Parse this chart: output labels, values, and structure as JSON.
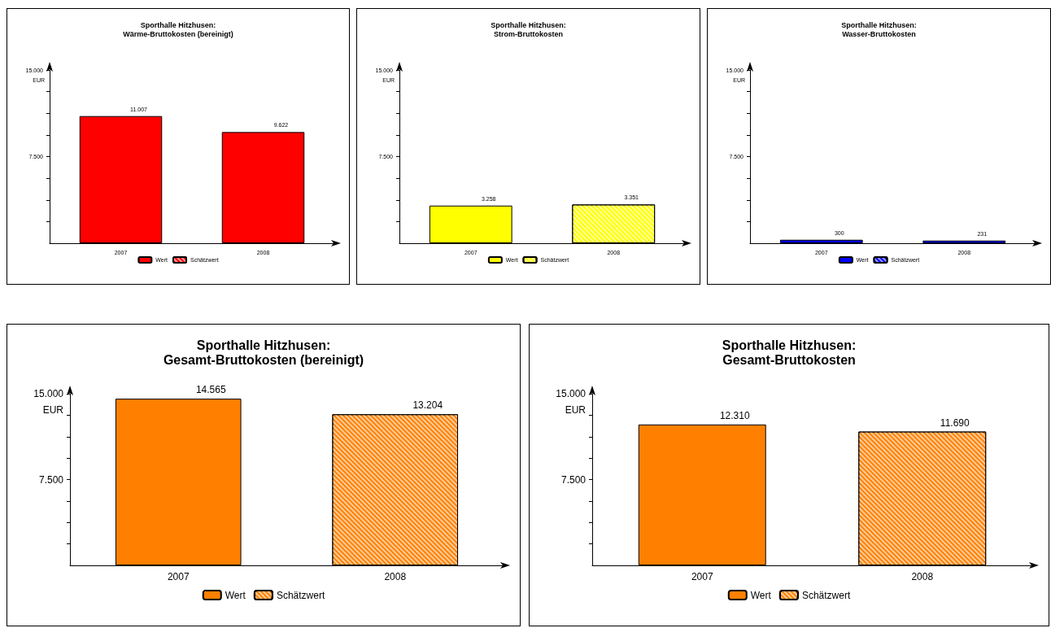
{
  "chart_data": [
    {
      "type": "bar",
      "title": "Sporthalle Hitzhusen:",
      "subtitle": "Wärme-Bruttokosten (bereinigt)",
      "ylabel": "EUR",
      "categories": [
        "2007",
        "2008"
      ],
      "series": [
        {
          "name": "Wert",
          "color": "#ff0000",
          "values": [
            11007,
            9622
          ],
          "value_labels": [
            "11.007",
            "9.622"
          ]
        },
        {
          "name": "Schätzwert",
          "color": "#ff0000",
          "values": [
            null,
            null
          ],
          "value_labels": [
            null,
            null
          ]
        }
      ],
      "ylim": [
        0,
        15000
      ],
      "yticks": [
        {
          "value": 1875,
          "label": null
        },
        {
          "value": 3750,
          "label": null
        },
        {
          "value": 5625,
          "label": null
        },
        {
          "value": 7500,
          "label": "7.500"
        },
        {
          "value": 9375,
          "label": null
        },
        {
          "value": 11250,
          "label": null
        },
        {
          "value": 13125,
          "label": null
        },
        {
          "value": 15000,
          "label": "15.000"
        }
      ],
      "legend": "bottom",
      "grid": false
    },
    {
      "type": "bar",
      "title": "Sporthalle Hitzhusen:",
      "subtitle": "Strom-Bruttokosten",
      "ylabel": "EUR",
      "categories": [
        "2007",
        "2008"
      ],
      "series": [
        {
          "name": "Wert",
          "color": "#ffff00",
          "values": [
            3258,
            null
          ],
          "value_labels": [
            "3.258",
            null
          ]
        },
        {
          "name": "Schätzwert",
          "color": "#ffff00",
          "values": [
            null,
            3351
          ],
          "value_labels": [
            null,
            "3.351"
          ]
        }
      ],
      "ylim": [
        0,
        15000
      ],
      "yticks": [
        {
          "value": 1875,
          "label": null
        },
        {
          "value": 3750,
          "label": null
        },
        {
          "value": 5625,
          "label": null
        },
        {
          "value": 7500,
          "label": "7.500"
        },
        {
          "value": 9375,
          "label": null
        },
        {
          "value": 11250,
          "label": null
        },
        {
          "value": 13125,
          "label": null
        },
        {
          "value": 15000,
          "label": "15.000"
        }
      ],
      "legend": "bottom",
      "grid": false
    },
    {
      "type": "bar",
      "title": "Sporthalle Hitzhusen:",
      "subtitle": "Wasser-Bruttokosten",
      "ylabel": "EUR",
      "categories": [
        "2007",
        "2008"
      ],
      "series": [
        {
          "name": "Wert",
          "color": "#0000ff",
          "values": [
            300,
            231
          ],
          "value_labels": [
            "300",
            "231"
          ]
        },
        {
          "name": "Schätzwert",
          "color": "#0000ff",
          "values": [
            null,
            null
          ],
          "value_labels": [
            null,
            null
          ]
        }
      ],
      "ylim": [
        0,
        15000
      ],
      "yticks": [
        {
          "value": 1875,
          "label": null
        },
        {
          "value": 3750,
          "label": null
        },
        {
          "value": 5625,
          "label": null
        },
        {
          "value": 7500,
          "label": "7.500"
        },
        {
          "value": 9375,
          "label": null
        },
        {
          "value": 11250,
          "label": null
        },
        {
          "value": 13125,
          "label": null
        },
        {
          "value": 15000,
          "label": "15.000"
        }
      ],
      "legend": "bottom",
      "grid": false
    },
    {
      "type": "bar",
      "title": "Sporthalle Hitzhusen:",
      "subtitle": "Gesamt-Bruttokosten (bereinigt)",
      "ylabel": "EUR",
      "categories": [
        "2007",
        "2008"
      ],
      "series": [
        {
          "name": "Wert",
          "color": "#ff8000",
          "values": [
            14565,
            null
          ],
          "value_labels": [
            "14.565",
            null
          ]
        },
        {
          "name": "Schätzwert",
          "color": "#ff8000",
          "values": [
            null,
            13204
          ],
          "value_labels": [
            null,
            "13.204"
          ]
        }
      ],
      "ylim": [
        0,
        15000
      ],
      "yticks": [
        {
          "value": 1875,
          "label": null
        },
        {
          "value": 3750,
          "label": null
        },
        {
          "value": 5625,
          "label": null
        },
        {
          "value": 7500,
          "label": "7.500"
        },
        {
          "value": 9375,
          "label": null
        },
        {
          "value": 11250,
          "label": null
        },
        {
          "value": 13125,
          "label": null
        },
        {
          "value": 15000,
          "label": "15.000"
        }
      ],
      "legend": "bottom",
      "grid": false
    },
    {
      "type": "bar",
      "title": "Sporthalle Hitzhusen:",
      "subtitle": "Gesamt-Bruttokosten",
      "ylabel": "EUR",
      "categories": [
        "2007",
        "2008"
      ],
      "series": [
        {
          "name": "Wert",
          "color": "#ff8000",
          "values": [
            12310,
            null
          ],
          "value_labels": [
            "12.310",
            null
          ]
        },
        {
          "name": "Schätzwert",
          "color": "#ff8000",
          "values": [
            null,
            11690
          ],
          "value_labels": [
            null,
            "11.690"
          ]
        }
      ],
      "ylim": [
        0,
        15000
      ],
      "yticks": [
        {
          "value": 1875,
          "label": null
        },
        {
          "value": 3750,
          "label": null
        },
        {
          "value": 5625,
          "label": null
        },
        {
          "value": 7500,
          "label": "7.500"
        },
        {
          "value": 9375,
          "label": null
        },
        {
          "value": 11250,
          "label": null
        },
        {
          "value": 13125,
          "label": null
        },
        {
          "value": 15000,
          "label": "15.000"
        }
      ],
      "legend": "bottom",
      "grid": false
    }
  ]
}
